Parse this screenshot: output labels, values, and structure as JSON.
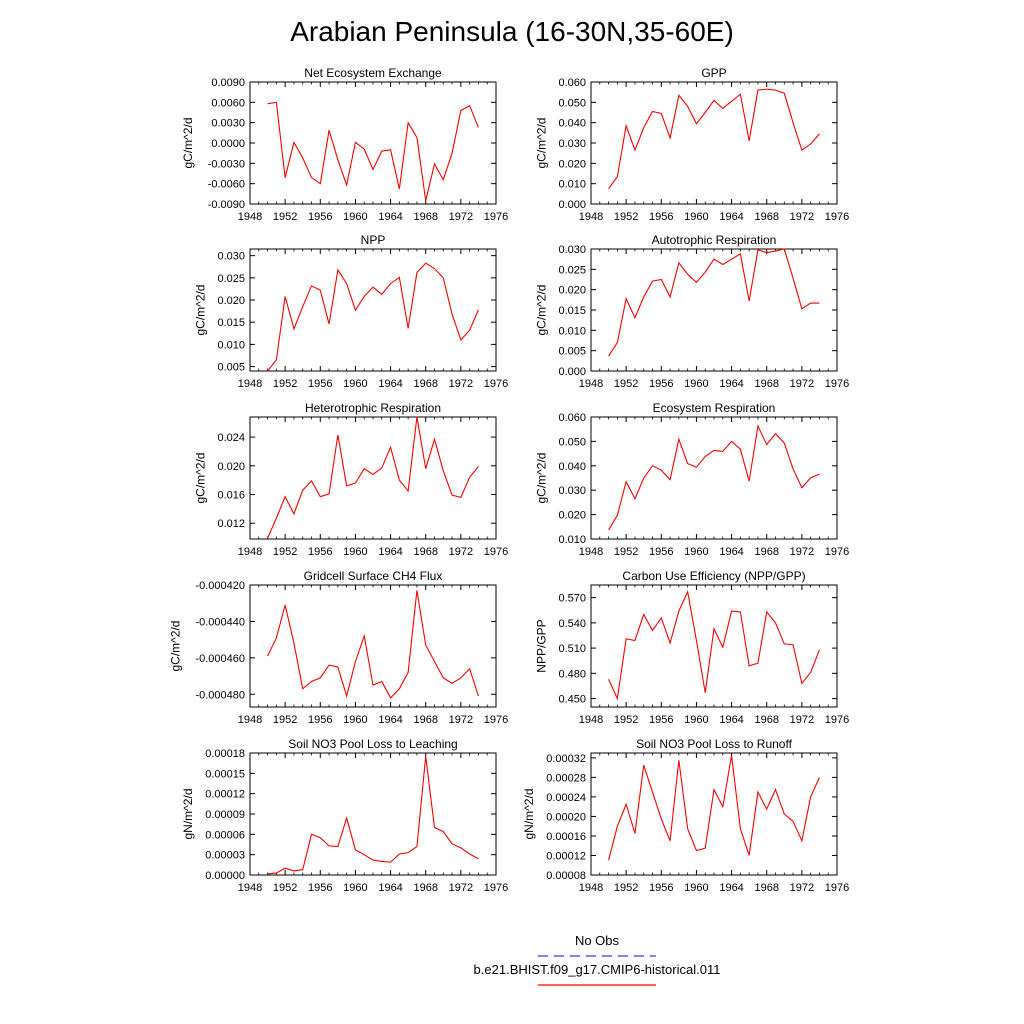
{
  "title": "Arabian Peninsula (16-30N,35-60E)",
  "legend": {
    "entries": [
      {
        "label": "No Obs",
        "color": "#3333ff",
        "dash": true
      },
      {
        "label": "b.e21.BHIST.f09_g17.CMIP6-historical.011",
        "color": "#ff0000",
        "dash": false
      }
    ]
  },
  "line_color": "#ff0000",
  "chart_data": [
    {
      "type": "line",
      "title": "Net Ecosystem Exchange",
      "ylabel": "gC/m^2/d",
      "xlim": [
        1948,
        1976
      ],
      "xticks": [
        1948,
        1952,
        1956,
        1960,
        1964,
        1968,
        1972,
        1976
      ],
      "ylim": [
        -0.009,
        0.009
      ],
      "yticks": [
        -0.009,
        -0.006,
        -0.003,
        0.0,
        0.003,
        0.006,
        0.009
      ],
      "ytick_labels": [
        "-0.0090",
        "-0.0060",
        "-0.0030",
        "0.0000",
        "0.0030",
        "0.0060",
        "0.0090"
      ],
      "x": [
        1950,
        1951,
        1952,
        1953,
        1954,
        1955,
        1956,
        1957,
        1958,
        1959,
        1960,
        1961,
        1962,
        1963,
        1964,
        1965,
        1966,
        1967,
        1968,
        1969,
        1970,
        1971,
        1972,
        1973,
        1974
      ],
      "y": [
        0.0058,
        0.006,
        -0.0051,
        0.0001,
        -0.0022,
        -0.0051,
        -0.006,
        0.0019,
        -0.0025,
        -0.0062,
        0.0001,
        -0.0009,
        -0.0039,
        -0.0012,
        -0.001,
        -0.0068,
        0.003,
        0.0008,
        -0.0085,
        -0.0031,
        -0.0054,
        -0.0015,
        0.0048,
        0.0055,
        0.0023
      ]
    },
    {
      "type": "line",
      "title": "GPP",
      "ylabel": "gC/m^2/d",
      "xlim": [
        1948,
        1976
      ],
      "xticks": [
        1948,
        1952,
        1956,
        1960,
        1964,
        1968,
        1972,
        1976
      ],
      "ylim": [
        0.0,
        0.06
      ],
      "yticks": [
        0.0,
        0.01,
        0.02,
        0.03,
        0.04,
        0.05,
        0.06
      ],
      "ytick_labels": [
        "0.000",
        "0.010",
        "0.020",
        "0.030",
        "0.040",
        "0.050",
        "0.060"
      ],
      "x": [
        1950,
        1951,
        1952,
        1953,
        1954,
        1955,
        1956,
        1957,
        1958,
        1959,
        1960,
        1961,
        1962,
        1963,
        1964,
        1965,
        1966,
        1967,
        1968,
        1969,
        1970,
        1971,
        1972,
        1973,
        1974
      ],
      "y": [
        0.0075,
        0.0135,
        0.0385,
        0.0265,
        0.0375,
        0.0455,
        0.0445,
        0.0325,
        0.0535,
        0.048,
        0.0395,
        0.045,
        0.051,
        0.047,
        0.0505,
        0.054,
        0.031,
        0.056,
        0.0565,
        0.056,
        0.0545,
        0.04,
        0.0265,
        0.0295,
        0.0345
      ]
    },
    {
      "type": "line",
      "title": "NPP",
      "ylabel": "gC/m^2/d",
      "xlim": [
        1948,
        1976
      ],
      "xticks": [
        1948,
        1952,
        1956,
        1960,
        1964,
        1968,
        1972,
        1976
      ],
      "ylim": [
        0.004,
        0.0315
      ],
      "yticks": [
        0.005,
        0.01,
        0.015,
        0.02,
        0.025,
        0.03
      ],
      "ytick_labels": [
        "0.005",
        "0.010",
        "0.015",
        "0.020",
        "0.025",
        "0.030"
      ],
      "x": [
        1950,
        1951,
        1952,
        1953,
        1954,
        1955,
        1956,
        1957,
        1958,
        1959,
        1960,
        1961,
        1962,
        1963,
        1964,
        1965,
        1966,
        1967,
        1968,
        1969,
        1970,
        1971,
        1972,
        1973,
        1974
      ],
      "y": [
        0.004,
        0.0065,
        0.0208,
        0.0135,
        0.0185,
        0.0232,
        0.0222,
        0.0146,
        0.0268,
        0.0237,
        0.0177,
        0.0208,
        0.0229,
        0.0213,
        0.0237,
        0.0251,
        0.0136,
        0.0262,
        0.0283,
        0.0271,
        0.025,
        0.0168,
        0.011,
        0.0132,
        0.0178
      ]
    },
    {
      "type": "line",
      "title": "Autotrophic Respiration",
      "ylabel": "gC/m^2/d",
      "xlim": [
        1948,
        1976
      ],
      "xticks": [
        1948,
        1952,
        1956,
        1960,
        1964,
        1968,
        1972,
        1976
      ],
      "ylim": [
        0.0,
        0.03
      ],
      "yticks": [
        0.0,
        0.005,
        0.01,
        0.015,
        0.02,
        0.025,
        0.03
      ],
      "ytick_labels": [
        "0.000",
        "0.005",
        "0.010",
        "0.015",
        "0.020",
        "0.025",
        "0.030"
      ],
      "x": [
        1950,
        1951,
        1952,
        1953,
        1954,
        1955,
        1956,
        1957,
        1958,
        1959,
        1960,
        1961,
        1962,
        1963,
        1964,
        1965,
        1966,
        1967,
        1968,
        1969,
        1970,
        1971,
        1972,
        1973,
        1974
      ],
      "y": [
        0.0037,
        0.007,
        0.0178,
        0.0131,
        0.0182,
        0.0221,
        0.0225,
        0.0182,
        0.0266,
        0.0238,
        0.0218,
        0.0243,
        0.0275,
        0.0262,
        0.0275,
        0.0288,
        0.0172,
        0.0298,
        0.0291,
        0.0295,
        0.03,
        0.0228,
        0.0153,
        0.0167,
        0.0167
      ]
    },
    {
      "type": "line",
      "title": "Heterotrophic Respiration",
      "ylabel": "gC/m^2/d",
      "xlim": [
        1948,
        1976
      ],
      "xticks": [
        1948,
        1952,
        1956,
        1960,
        1964,
        1968,
        1972,
        1976
      ],
      "ylim": [
        0.0098,
        0.0268
      ],
      "yticks": [
        0.012,
        0.016,
        0.02,
        0.024
      ],
      "ytick_labels": [
        "0.012",
        "0.016",
        "0.020",
        "0.024"
      ],
      "x": [
        1950,
        1951,
        1952,
        1953,
        1954,
        1955,
        1956,
        1957,
        1958,
        1959,
        1960,
        1961,
        1962,
        1963,
        1964,
        1965,
        1966,
        1967,
        1968,
        1969,
        1970,
        1971,
        1972,
        1973,
        1974
      ],
      "y": [
        0.0099,
        0.0127,
        0.0157,
        0.0133,
        0.0166,
        0.0179,
        0.0157,
        0.0161,
        0.0243,
        0.0172,
        0.0176,
        0.0196,
        0.0188,
        0.0197,
        0.0226,
        0.018,
        0.0165,
        0.0268,
        0.0196,
        0.0237,
        0.0193,
        0.0159,
        0.0156,
        0.0184,
        0.0199
      ]
    },
    {
      "type": "line",
      "title": "Ecosystem Respiration",
      "ylabel": "gC/m^2/d",
      "xlim": [
        1948,
        1976
      ],
      "xticks": [
        1948,
        1952,
        1956,
        1960,
        1964,
        1968,
        1972,
        1976
      ],
      "ylim": [
        0.01,
        0.06
      ],
      "yticks": [
        0.01,
        0.02,
        0.03,
        0.04,
        0.05,
        0.06
      ],
      "ytick_labels": [
        "0.010",
        "0.020",
        "0.030",
        "0.040",
        "0.050",
        "0.060"
      ],
      "x": [
        1950,
        1951,
        1952,
        1953,
        1954,
        1955,
        1956,
        1957,
        1958,
        1959,
        1960,
        1961,
        1962,
        1963,
        1964,
        1965,
        1966,
        1967,
        1968,
        1969,
        1970,
        1971,
        1972,
        1973,
        1974
      ],
      "y": [
        0.0137,
        0.0197,
        0.0335,
        0.0265,
        0.0349,
        0.04,
        0.0382,
        0.0343,
        0.0509,
        0.0409,
        0.0394,
        0.0438,
        0.0463,
        0.0459,
        0.05,
        0.0468,
        0.0337,
        0.0563,
        0.0487,
        0.0532,
        0.0493,
        0.0387,
        0.031,
        0.0351,
        0.0366
      ]
    },
    {
      "type": "line",
      "title": "Gridcell Surface CH4 Flux",
      "ylabel": "gC/m^2/d",
      "xlim": [
        1948,
        1976
      ],
      "xticks": [
        1948,
        1952,
        1956,
        1960,
        1964,
        1968,
        1972,
        1976
      ],
      "ylim": [
        -0.000487,
        -0.00042
      ],
      "yticks": [
        -0.00048,
        -0.00046,
        -0.00044,
        -0.00042
      ],
      "ytick_labels": [
        "-0.000480",
        "-0.000460",
        "-0.000440",
        "-0.000420"
      ],
      "x": [
        1950,
        1951,
        1952,
        1953,
        1954,
        1955,
        1956,
        1957,
        1958,
        1959,
        1960,
        1961,
        1962,
        1963,
        1964,
        1965,
        1966,
        1967,
        1968,
        1969,
        1970,
        1971,
        1972,
        1973,
        1974
      ],
      "y": [
        -0.000459,
        -0.000449,
        -0.000431,
        -0.000452,
        -0.000477,
        -0.000473,
        -0.000471,
        -0.000464,
        -0.000465,
        -0.000481,
        -0.000462,
        -0.000448,
        -0.000475,
        -0.000473,
        -0.000482,
        -0.000477,
        -0.000468,
        -0.000423,
        -0.000453,
        -0.000462,
        -0.000471,
        -0.000474,
        -0.000471,
        -0.000466,
        -0.000481
      ]
    },
    {
      "type": "line",
      "title": "Carbon Use Efficiency (NPP/GPP)",
      "ylabel": "NPP/GPP",
      "xlim": [
        1948,
        1976
      ],
      "xticks": [
        1948,
        1952,
        1956,
        1960,
        1964,
        1968,
        1972,
        1976
      ],
      "ylim": [
        0.44,
        0.585
      ],
      "yticks": [
        0.45,
        0.48,
        0.51,
        0.54,
        0.57
      ],
      "ytick_labels": [
        "0.450",
        "0.480",
        "0.510",
        "0.540",
        "0.570"
      ],
      "x": [
        1950,
        1951,
        1952,
        1953,
        1954,
        1955,
        1956,
        1957,
        1958,
        1959,
        1960,
        1961,
        1962,
        1963,
        1964,
        1965,
        1966,
        1967,
        1968,
        1969,
        1970,
        1971,
        1972,
        1973,
        1974
      ],
      "y": [
        0.473,
        0.45,
        0.521,
        0.519,
        0.55,
        0.531,
        0.546,
        0.516,
        0.554,
        0.577,
        0.519,
        0.457,
        0.533,
        0.511,
        0.554,
        0.553,
        0.489,
        0.492,
        0.553,
        0.54,
        0.515,
        0.514,
        0.468,
        0.481,
        0.508
      ]
    },
    {
      "type": "line",
      "title": "Soil NO3 Pool Loss to Leaching",
      "ylabel": "gN/m^2/d",
      "xlim": [
        1948,
        1976
      ],
      "xticks": [
        1948,
        1952,
        1956,
        1960,
        1964,
        1968,
        1972,
        1976
      ],
      "ylim": [
        0.0,
        0.00018
      ],
      "yticks": [
        0.0,
        3e-05,
        6e-05,
        9e-05,
        0.00012,
        0.00015,
        0.00018
      ],
      "ytick_labels": [
        "0.00000",
        "0.00003",
        "0.00006",
        "0.00009",
        "0.00012",
        "0.00015",
        "0.00018"
      ],
      "x": [
        1950,
        1951,
        1952,
        1953,
        1954,
        1955,
        1956,
        1957,
        1958,
        1959,
        1960,
        1961,
        1962,
        1963,
        1964,
        1965,
        1966,
        1967,
        1968,
        1969,
        1970,
        1971,
        1972,
        1973,
        1974
      ],
      "y": [
        1.5e-06,
        3e-06,
        1e-05,
        6e-06,
        8e-06,
        6e-05,
        5.5e-05,
        4.3e-05,
        4.2e-05,
        8.4e-05,
        3.7e-05,
        3e-05,
        2.2e-05,
        2e-05,
        1.9e-05,
        3.1e-05,
        3.3e-05,
        4.2e-05,
        0.000175,
        7e-05,
        6.4e-05,
        4.6e-05,
        4e-05,
        3.1e-05,
        2.4e-05
      ]
    },
    {
      "type": "line",
      "title": "Soil NO3 Pool Loss to Runoff",
      "ylabel": "gN/m^2/d",
      "xlim": [
        1948,
        1976
      ],
      "xticks": [
        1948,
        1952,
        1956,
        1960,
        1964,
        1968,
        1972,
        1976
      ],
      "ylim": [
        8e-05,
        0.00033
      ],
      "yticks": [
        8e-05,
        0.00012,
        0.00016,
        0.0002,
        0.00024,
        0.00028,
        0.00032
      ],
      "ytick_labels": [
        "0.00008",
        "0.00012",
        "0.00016",
        "0.00020",
        "0.00024",
        "0.00028",
        "0.00032"
      ],
      "x": [
        1950,
        1951,
        1952,
        1953,
        1954,
        1955,
        1956,
        1957,
        1958,
        1959,
        1960,
        1961,
        1962,
        1963,
        1964,
        1965,
        1966,
        1967,
        1968,
        1969,
        1970,
        1971,
        1972,
        1973,
        1974
      ],
      "y": [
        0.00011,
        0.00018,
        0.000225,
        0.000165,
        0.000305,
        0.00025,
        0.000195,
        0.00015,
        0.000315,
        0.000175,
        0.00013,
        0.000135,
        0.000255,
        0.00022,
        0.000325,
        0.000175,
        0.00012,
        0.00025,
        0.000215,
        0.000255,
        0.000205,
        0.00019,
        0.00015,
        0.00024,
        0.00028
      ]
    }
  ]
}
